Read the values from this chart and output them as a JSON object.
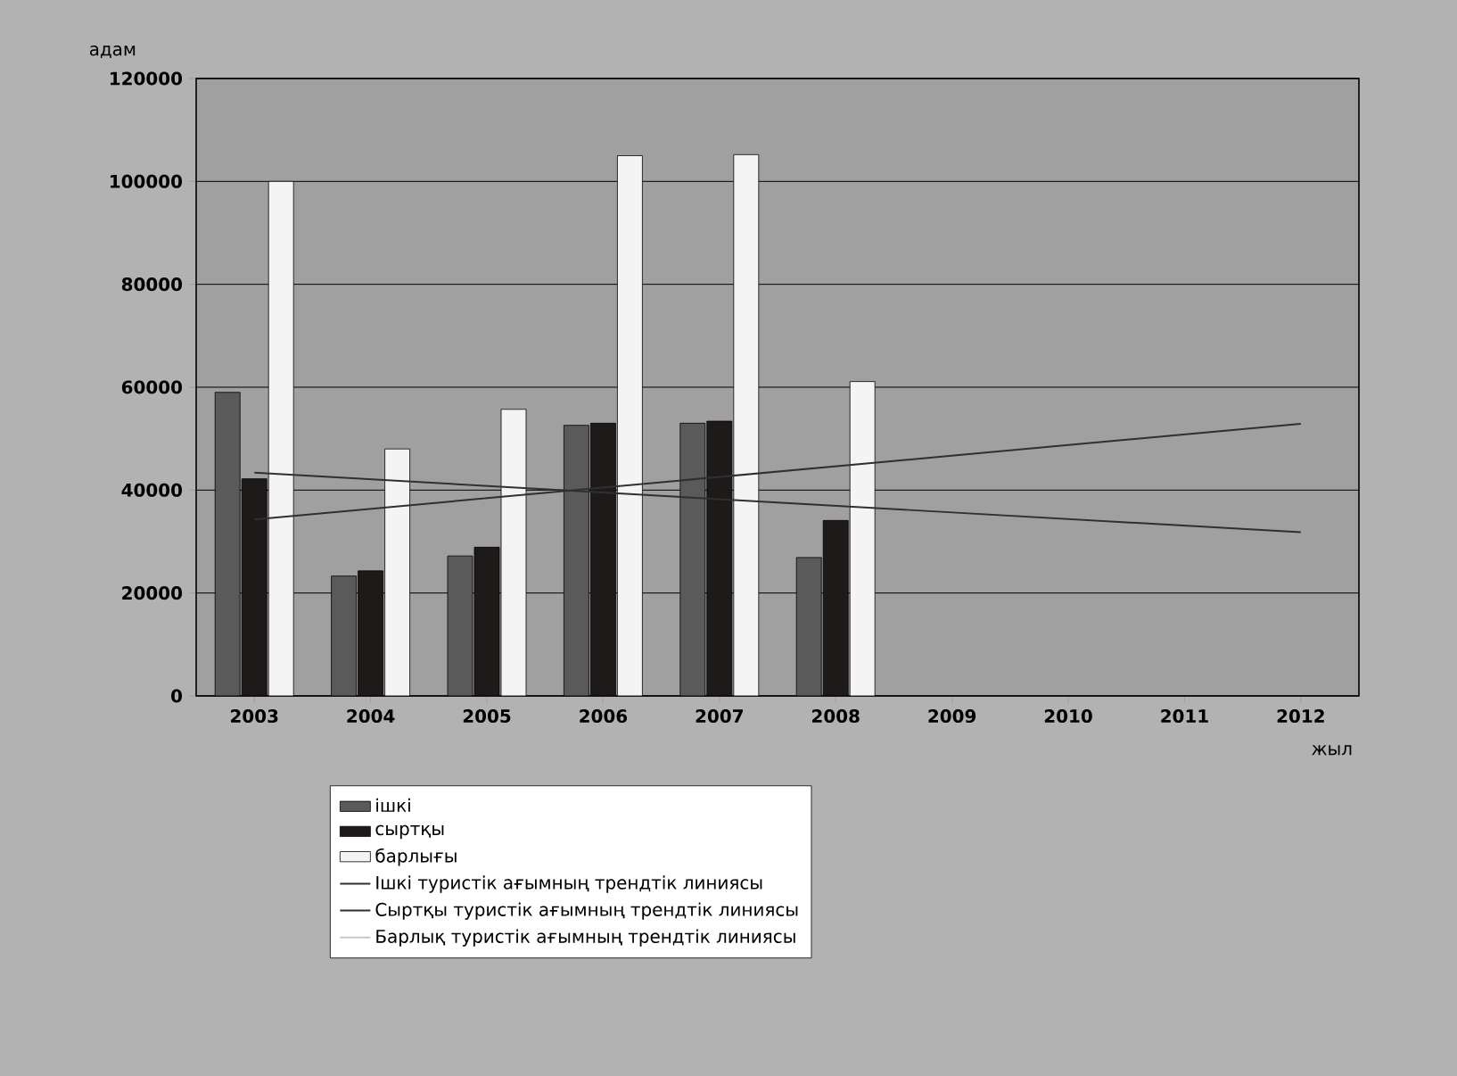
{
  "chart_data": {
    "type": "bar",
    "ylabel": "адам",
    "xlabel": "жыл",
    "categories": [
      "2003",
      "2004",
      "2005",
      "2006",
      "2007",
      "2008",
      "2009",
      "2010",
      "2011",
      "2012"
    ],
    "series": [
      {
        "name": "ішкі",
        "color": "#5a5a5a",
        "values": [
          59000,
          23300,
          27200,
          52600,
          53000,
          26900,
          null,
          null,
          null,
          null
        ]
      },
      {
        "name": "сыртқы",
        "color": "#1e1a1a",
        "values": [
          42200,
          24300,
          28900,
          53000,
          53400,
          34100,
          null,
          null,
          null,
          null
        ]
      },
      {
        "name": "барлығы",
        "color": "#f4f4f4",
        "values": [
          100000,
          48000,
          55700,
          105000,
          105200,
          61100,
          null,
          null,
          null,
          null
        ]
      },
      {
        "name": "Ішкі туристік ағымның    трендтік линиясы",
        "type": "line",
        "color": "#303030",
        "values": [
          43400,
          null,
          null,
          null,
          null,
          null,
          null,
          null,
          null,
          31800
        ]
      },
      {
        "name": "Сыртқы туристік ағымның трендтік линиясы",
        "type": "line",
        "color": "#303030",
        "values": [
          34300,
          null,
          null,
          null,
          null,
          null,
          null,
          null,
          null,
          52900
        ]
      },
      {
        "name": "Барлық туристік ағымның трендтік линиясы",
        "type": "line",
        "color": "#c8c8c8",
        "values": [
          null,
          null,
          null,
          null,
          null,
          null,
          null,
          null,
          null,
          null
        ]
      }
    ],
    "ylim": [
      0,
      120000
    ],
    "yticks": [
      0,
      20000,
      40000,
      60000,
      80000,
      100000,
      120000
    ],
    "grid": "y",
    "legend": "bottom"
  }
}
